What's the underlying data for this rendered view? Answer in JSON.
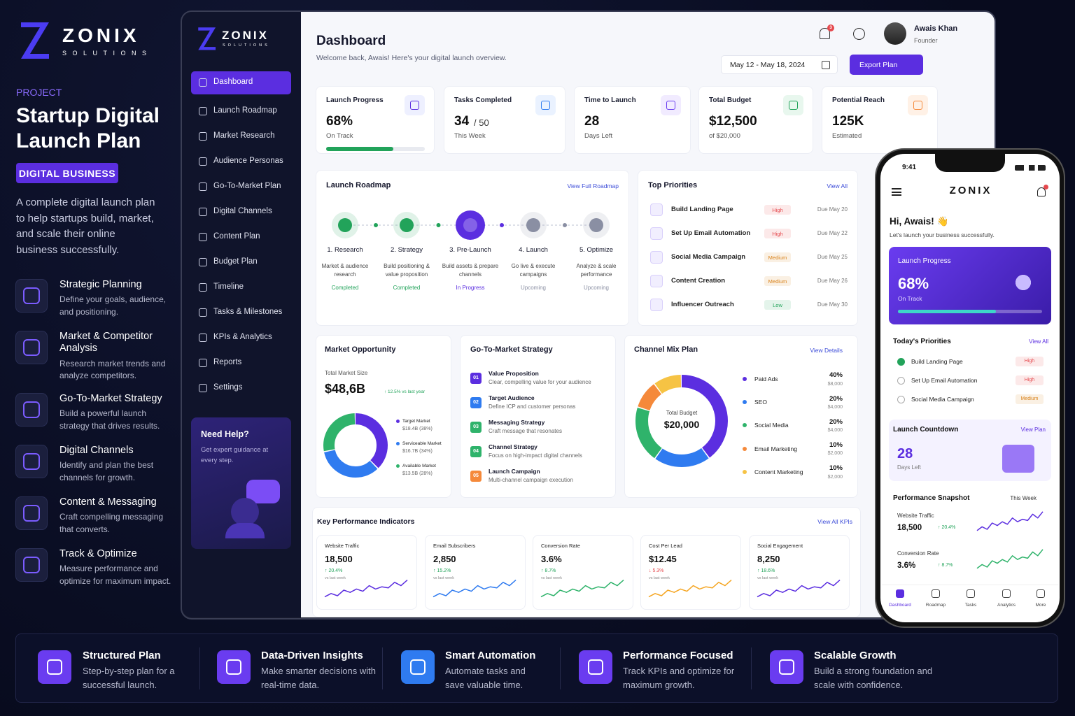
{
  "brand": {
    "name": "ZONIX",
    "tagline": "SOLUTIONS"
  },
  "intro": {
    "eyebrow": "PROJECT",
    "title": "Startup Digital Launch Plan",
    "badge": "DIGITAL BUSINESS",
    "description": "A complete digital launch plan to help startups build, market, and scale their online business successfully.",
    "features": [
      {
        "title": "Strategic Planning",
        "text": "Define your goals, audience, and positioning."
      },
      {
        "title": "Market & Competitor Analysis",
        "text": "Research market trends and analyze competitors."
      },
      {
        "title": "Go-To-Market Strategy",
        "text": "Build a powerful launch strategy that drives results."
      },
      {
        "title": "Digital Channels",
        "text": "Identify and plan the best channels for growth."
      },
      {
        "title": "Content & Messaging",
        "text": "Craft compelling messaging that converts."
      },
      {
        "title": "Track & Optimize",
        "text": "Measure performance and optimize for maximum impact."
      }
    ]
  },
  "sidebar": {
    "items": [
      "Dashboard",
      "Launch Roadmap",
      "Market Research",
      "Audience Personas",
      "Go-To-Market Plan",
      "Digital Channels",
      "Content Plan",
      "Budget Plan",
      "Timeline",
      "Tasks & Milestones",
      "KPIs & Analytics",
      "Reports",
      "Settings"
    ],
    "help": {
      "title": "Need Help?",
      "text": "Get expert guidance at every step."
    }
  },
  "header": {
    "title": "Dashboard",
    "subtitle": "Welcome back, Awais! Here's your digital launch overview.",
    "notifications": "3",
    "user_name": "Awais Khan",
    "user_role": "Founder",
    "date_range": "May 12 - May 18, 2024",
    "export": "Export Plan"
  },
  "stats": [
    {
      "title": "Launch Progress",
      "value": {
        "value": 68,
        "label": "68%"
      },
      "note": "On Track"
    },
    {
      "title": "Tasks Completed",
      "value": "34",
      "unit": "/ 50",
      "note": "This Week"
    },
    {
      "title": "Time to Launch",
      "value": "28",
      "note": "Days Left"
    },
    {
      "title": "Total Budget",
      "value": "$12,500",
      "note": "of $20,000"
    },
    {
      "title": "Potential Reach",
      "value": "125K",
      "note": "Estimated"
    }
  ],
  "roadmap": {
    "title": "Launch Roadmap",
    "link": "View Full Roadmap",
    "steps": [
      {
        "name": "1. Research",
        "text": "Market & audience research",
        "status": "Completed",
        "color": "#22a35a"
      },
      {
        "name": "2. Strategy",
        "text": "Build positioning & value proposition",
        "status": "Completed",
        "color": "#22a35a"
      },
      {
        "name": "3. Pre-Launch",
        "text": "Build assets & prepare channels",
        "status": "In Progress",
        "color": "#5b2ee0"
      },
      {
        "name": "4. Launch",
        "text": "Go live & execute campaigns",
        "status": "Upcoming",
        "color": "#8a8fa3"
      },
      {
        "name": "5. Optimize",
        "text": "Analyze & scale performance",
        "status": "Upcoming",
        "color": "#8a8fa3"
      }
    ]
  },
  "priorities": {
    "title": "Top Priorities",
    "link": "View All",
    "items": [
      {
        "task": "Build Landing Page",
        "level": "High",
        "due": "Due May 20",
        "color": "#e5484d"
      },
      {
        "task": "Set Up Email Automation",
        "level": "High",
        "due": "Due May 22",
        "color": "#e5484d"
      },
      {
        "task": "Social Media Campaign",
        "level": "Medium",
        "due": "Due May 25",
        "color": "#d9821a"
      },
      {
        "task": "Content Creation",
        "level": "Medium",
        "due": "Due May 26",
        "color": "#d9821a"
      },
      {
        "task": "Influencer Outreach",
        "level": "Low",
        "due": "Due May 30",
        "color": "#22a35a"
      }
    ]
  },
  "market": {
    "title": "Market Opportunity",
    "label": "Total Market Size",
    "value": "$48,6B",
    "growth": "↑ 12.5% vs last year",
    "segments": [
      {
        "name": "Target Market",
        "share": {
          "value": 38,
          "label": "$18.4B (38%)"
        },
        "color": "#5b2ee0"
      },
      {
        "name": "Serviceable Market",
        "share": {
          "value": 34,
          "label": "$16.7B (34%)"
        },
        "color": "#2f7bf0"
      },
      {
        "name": "Available Market",
        "share": {
          "value": 28,
          "label": "$13.5B (28%)"
        },
        "color": "#2fb36b"
      }
    ]
  },
  "gtm": {
    "title": "Go-To-Market Strategy",
    "items": [
      {
        "num": "01",
        "title": "Value Proposition",
        "text": "Clear, compelling value for your audience",
        "color": "#5b2ee0"
      },
      {
        "num": "02",
        "title": "Target Audience",
        "text": "Define ICP and customer personas",
        "color": "#2f7bf0"
      },
      {
        "num": "03",
        "title": "Messaging Strategy",
        "text": "Craft message that resonates",
        "color": "#2fb36b"
      },
      {
        "num": "04",
        "title": "Channel Strategy",
        "text": "Focus on high-impact digital channels",
        "color": "#2fb36b"
      },
      {
        "num": "05",
        "title": "Launch Campaign",
        "text": "Multi-channel campaign execution",
        "color": "#f5893a"
      }
    ]
  },
  "channels": {
    "title": "Channel Mix Plan",
    "link": "View Details",
    "center_label": "Total Budget",
    "center_value": "$20,000",
    "items": [
      {
        "name": "Paid Ads",
        "share": {
          "value": 40,
          "label": "40%"
        },
        "amount": "$8,000",
        "color": "#5b2ee0"
      },
      {
        "name": "SEO",
        "share": {
          "value": 20,
          "label": "20%"
        },
        "amount": "$4,000",
        "color": "#2f7bf0"
      },
      {
        "name": "Social Media",
        "share": {
          "value": 20,
          "label": "20%"
        },
        "amount": "$4,000",
        "color": "#2fb36b"
      },
      {
        "name": "Email Marketing",
        "share": {
          "value": 10,
          "label": "10%"
        },
        "amount": "$2,000",
        "color": "#f5893a"
      },
      {
        "name": "Content Marketing",
        "share": {
          "value": 10,
          "label": "10%"
        },
        "amount": "$2,000",
        "color": "#f6c344"
      }
    ]
  },
  "kpis": {
    "title": "Key Performance Indicators",
    "link": "View All KPIs",
    "cards": [
      {
        "title": "Website Traffic",
        "value": "18,500",
        "change": "↑ 20.4%",
        "note": "vs last week",
        "color": "#5b2ee0",
        "change_color": "#22a35a"
      },
      {
        "title": "Email Subscribers",
        "value": "2,850",
        "change": "↑ 15.2%",
        "note": "vs last week",
        "color": "#2f7bf0",
        "change_color": "#22a35a"
      },
      {
        "title": "Conversion Rate",
        "value": "3.6%",
        "change": "↑ 8.7%",
        "note": "vs last week",
        "color": "#2fb36b",
        "change_color": "#22a35a"
      },
      {
        "title": "Cost Per Lead",
        "value": "$12.45",
        "change": "↓ 5.3%",
        "note": "vs last week",
        "color": "#f5a623",
        "change_color": "#e5484d"
      },
      {
        "title": "Social Engagement",
        "value": "8,250",
        "change": "↑ 18.6%",
        "note": "vs last week",
        "color": "#5b2ee0",
        "change_color": "#22a35a"
      }
    ]
  },
  "mobile": {
    "time": "9:41",
    "brand": "ZONIX",
    "greeting": "Hi, Awais! 👋",
    "subtitle": "Let's launch your business successfully.",
    "progress": {
      "title": "Launch Progress",
      "value": {
        "value": 68,
        "label": "68%"
      },
      "note": "On Track"
    },
    "priorities": {
      "title": "Today's Priorities",
      "link": "View All",
      "items": [
        {
          "task": "Build Landing Page",
          "level": "High",
          "done": true,
          "color": "#e5484d"
        },
        {
          "task": "Set Up Email Automation",
          "level": "High",
          "done": false,
          "color": "#e5484d"
        },
        {
          "task": "Social Media Campaign",
          "level": "Medium",
          "done": false,
          "color": "#d9821a"
        }
      ]
    },
    "countdown": {
      "title": "Launch Countdown",
      "link": "View Plan",
      "value": "28",
      "note": "Days Left"
    },
    "performance": {
      "title": "Performance Snapshot",
      "period": "This Week",
      "metrics": [
        {
          "name": "Website Traffic",
          "value": "18,500",
          "change": "↑ 20.4%",
          "color": "#5b2ee0"
        },
        {
          "name": "Conversion Rate",
          "value": "3.6%",
          "change": "↑ 8.7%",
          "color": "#2fb36b"
        }
      ]
    },
    "nav": [
      "Dashboard",
      "Roadmap",
      "Tasks",
      "Analytics",
      "More"
    ]
  },
  "footer": {
    "items": [
      {
        "title": "Structured Plan",
        "text": "Step-by-step plan for a successful launch.",
        "color": "#6a3cf0"
      },
      {
        "title": "Data-Driven Insights",
        "text": "Make smarter decisions with real-time data.",
        "color": "#6a3cf0"
      },
      {
        "title": "Smart Automation",
        "text": "Automate tasks and save valuable time.",
        "color": "#2f7bf0"
      },
      {
        "title": "Performance Focused",
        "text": "Track KPIs and optimize for maximum growth.",
        "color": "#6a3cf0"
      },
      {
        "title": "Scalable Growth",
        "text": "Build a strong foundation and scale with confidence.",
        "color": "#6a3cf0"
      }
    ]
  }
}
